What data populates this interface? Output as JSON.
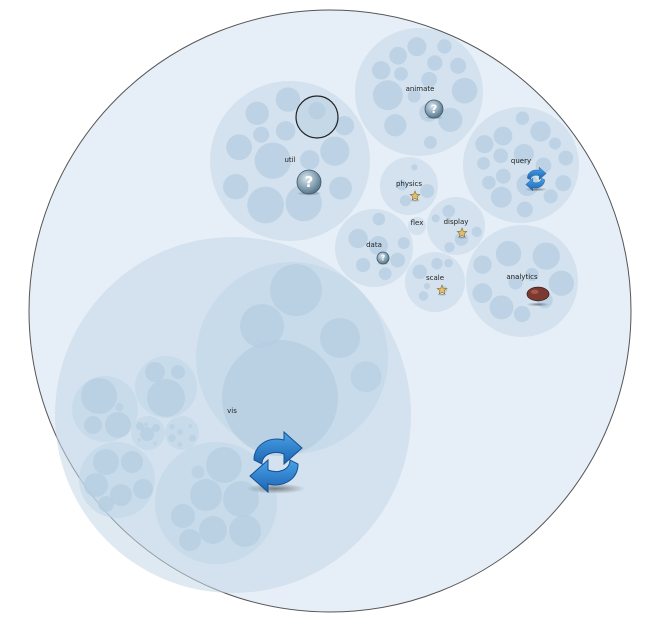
{
  "diagram": {
    "type": "circle-packing",
    "colors": {
      "root_fill": "#e6eff7",
      "root_stroke": "#555555",
      "group_fill": "#c2d7e7",
      "leaf_fill": "#b3cde1",
      "highlight_stroke": "#222222",
      "label_color": "#222222"
    },
    "nodes": [
      {
        "id": "vis",
        "label": "vis",
        "icon": "refresh-icon"
      },
      {
        "id": "util",
        "label": "util",
        "icon": "help-icon"
      },
      {
        "id": "animate",
        "label": "animate",
        "icon": "help-icon"
      },
      {
        "id": "query",
        "label": "query",
        "icon": "refresh-icon"
      },
      {
        "id": "physics",
        "label": "physics",
        "icon": "star-icon"
      },
      {
        "id": "flex",
        "label": "flex",
        "icon": ""
      },
      {
        "id": "display",
        "label": "display",
        "icon": "star-icon"
      },
      {
        "id": "data",
        "label": "data",
        "icon": "help-icon"
      },
      {
        "id": "scale",
        "label": "scale",
        "icon": "star-icon"
      },
      {
        "id": "analytics",
        "label": "analytics",
        "icon": "meteor-icon"
      }
    ]
  }
}
